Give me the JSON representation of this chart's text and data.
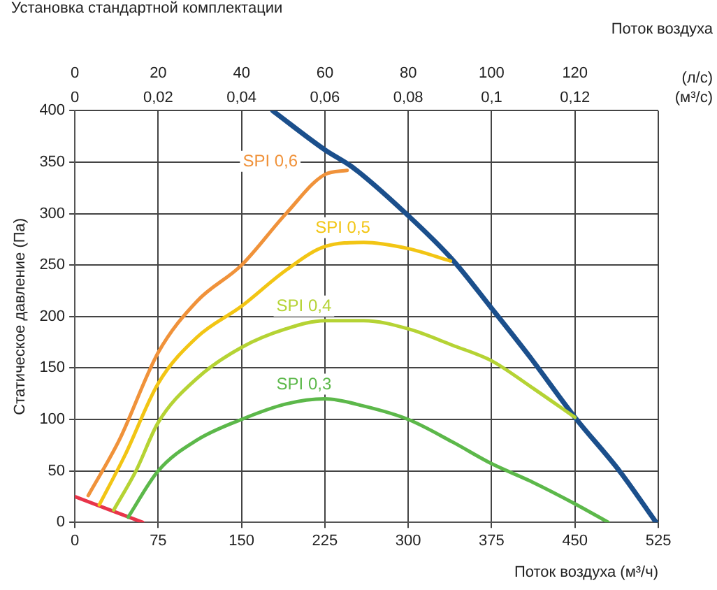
{
  "chart_data": {
    "type": "line",
    "title": "Установка стандартной комплектации",
    "xlabel": "Поток воздуха (м³/ч)",
    "ylabel": "Статическое давление (Па)",
    "x2label": "(л/с)",
    "annotations": [
      "Поток воздуха",
      "(м³/с)",
      "0",
      "0,02",
      "0,04",
      "0,06",
      "0,08",
      "0,1",
      "0,12"
    ],
    "xlim": [
      0,
      525
    ],
    "xticks": [
      0,
      75,
      150,
      225,
      300,
      375,
      450,
      525
    ],
    "x2lim": [
      0,
      140
    ],
    "x2ticks": [
      0,
      20,
      40,
      60,
      80,
      100,
      120
    ],
    "ylim": [
      0,
      400
    ],
    "yticks": [
      0,
      50,
      100,
      150,
      200,
      250,
      300,
      350,
      400
    ],
    "grid": true,
    "legend": false,
    "marker": "none",
    "line_style": "solid",
    "series": [
      {
        "name": "SPI 0,6",
        "color": "#f0923a",
        "x": [
          12,
          40,
          75,
          110,
          150,
          190,
          225,
          245
        ],
        "values": [
          26,
          80,
          165,
          215,
          250,
          300,
          338,
          342
        ]
      },
      {
        "name": "SPI 0,5",
        "color": "#f2c514",
        "x": [
          22,
          45,
          75,
          110,
          150,
          190,
          225,
          260,
          300,
          338
        ],
        "values": [
          17,
          65,
          135,
          180,
          210,
          245,
          268,
          272,
          266,
          254
        ]
      },
      {
        "name": "SPI 0,4",
        "color": "#b5d334",
        "x": [
          35,
          55,
          75,
          110,
          150,
          190,
          225,
          260,
          300,
          340,
          375,
          410,
          450
        ],
        "values": [
          12,
          50,
          97,
          140,
          170,
          188,
          196,
          196,
          188,
          172,
          157,
          132,
          102
        ]
      },
      {
        "name": "SPI 0,3",
        "color": "#5cb84a",
        "x": [
          48,
          75,
          110,
          150,
          190,
          225,
          260,
          300,
          340,
          375,
          410,
          450,
          480
        ],
        "values": [
          5,
          50,
          80,
          100,
          115,
          120,
          113,
          100,
          78,
          57,
          40,
          18,
          0
        ]
      },
      {
        "color": "#1b4f8c",
        "x": [
          178,
          225,
          250,
          300,
          340,
          375,
          410,
          450,
          490,
          523
        ],
        "values": [
          400,
          362,
          345,
          298,
          255,
          208,
          160,
          102,
          50,
          0
        ]
      },
      {
        "color": "#e8344a",
        "x": [
          0,
          61
        ],
        "values": [
          25,
          0
        ]
      }
    ]
  }
}
